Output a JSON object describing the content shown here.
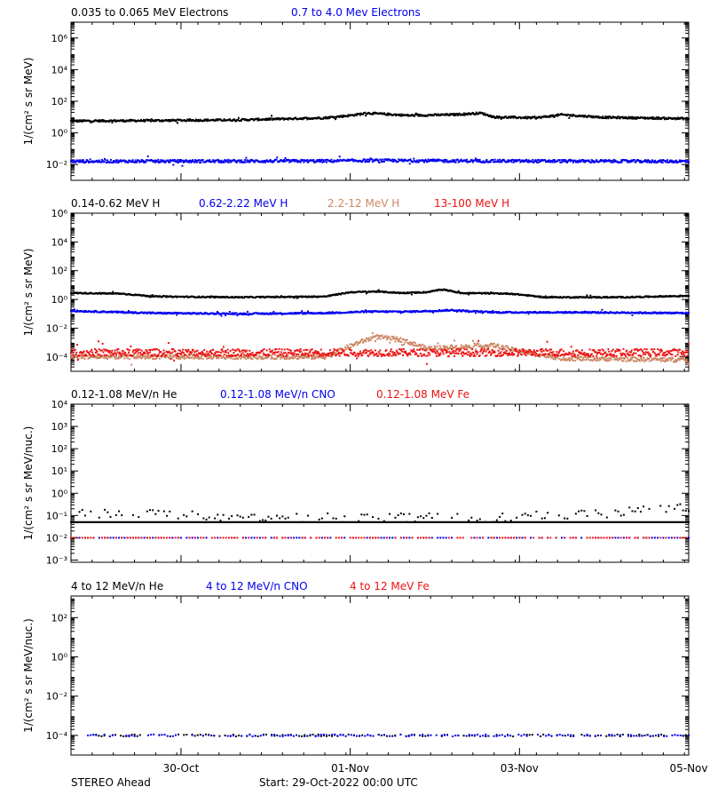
{
  "colors": {
    "black": "#000000",
    "blue": "#0000ee",
    "tan": "#cc8866",
    "red": "#ee1111"
  },
  "footer": {
    "left": "STEREO Ahead",
    "center": "Start: 29-Oct-2022 00:00 UTC"
  },
  "x_axis": {
    "unit": "days since start",
    "range": [
      0,
      7.3
    ],
    "ticks": [
      {
        "x": 1.3,
        "label": "30-Oct",
        "major": true
      },
      {
        "x": 3.3,
        "label": "01-Nov",
        "major": true
      },
      {
        "x": 5.3,
        "label": "03-Nov",
        "major": true
      },
      {
        "x": 7.3,
        "label": "05-Nov",
        "major": true
      }
    ]
  },
  "chart_data": [
    {
      "type": "scatter",
      "ylabel": "1/(cm² s sr MeV)",
      "ylog": true,
      "ylim_exp": [
        -3,
        7
      ],
      "yticks": [
        {
          "exp": -2,
          "label": "10⁻²"
        },
        {
          "exp": 0,
          "label": "10⁰"
        },
        {
          "exp": 2,
          "label": "10²"
        },
        {
          "exp": 4,
          "label": "10⁴"
        },
        {
          "exp": 6,
          "label": "10⁶"
        }
      ],
      "legend": [
        {
          "label": "0.035 to 0.065 MeV Electrons",
          "color": "black"
        },
        {
          "label": "0.7 to 4.0 Mev Electrons",
          "color": "blue"
        }
      ],
      "series": [
        {
          "color": "black",
          "scatter": 0.06,
          "points": [
            [
              0,
              0.75
            ],
            [
              1,
              0.78
            ],
            [
              2,
              0.82
            ],
            [
              3,
              0.95
            ],
            [
              3.3,
              1.1
            ],
            [
              3.5,
              1.25
            ],
            [
              4,
              1.1
            ],
            [
              4.5,
              1.15
            ],
            [
              4.85,
              1.25
            ],
            [
              5,
              1.0
            ],
            [
              5.5,
              0.95
            ],
            [
              5.8,
              1.15
            ],
            [
              6.3,
              0.98
            ],
            [
              7.3,
              0.9
            ]
          ]
        },
        {
          "color": "blue",
          "scatter": 0.09,
          "points": [
            [
              0,
              -1.8
            ],
            [
              3,
              -1.78
            ],
            [
              3.5,
              -1.75
            ],
            [
              5,
              -1.78
            ],
            [
              7.3,
              -1.8
            ]
          ]
        }
      ]
    },
    {
      "type": "scatter",
      "ylabel": "1/(cm² s sr MeV)",
      "ylog": true,
      "ylim_exp": [
        -5,
        6
      ],
      "yticks": [
        {
          "exp": -4,
          "label": "10⁻⁴"
        },
        {
          "exp": -2,
          "label": "10⁻²"
        },
        {
          "exp": 0,
          "label": "10⁰"
        },
        {
          "exp": 2,
          "label": "10²"
        },
        {
          "exp": 4,
          "label": "10⁴"
        },
        {
          "exp": 6,
          "label": "10⁶"
        }
      ],
      "legend": [
        {
          "label": "0.14-0.62 MeV H",
          "color": "black"
        },
        {
          "label": "0.62-2.22 MeV H",
          "color": "blue"
        },
        {
          "label": "2.2-12 MeV H",
          "color": "tan"
        },
        {
          "label": "13-100 MeV H",
          "color": "red"
        }
      ],
      "series": [
        {
          "color": "black",
          "scatter": 0.04,
          "points": [
            [
              0,
              0.45
            ],
            [
              0.6,
              0.4
            ],
            [
              1,
              0.2
            ],
            [
              2,
              0.15
            ],
            [
              3,
              0.2
            ],
            [
              3.3,
              0.5
            ],
            [
              3.6,
              0.55
            ],
            [
              3.9,
              0.45
            ],
            [
              4.2,
              0.5
            ],
            [
              4.4,
              0.7
            ],
            [
              4.6,
              0.45
            ],
            [
              5.2,
              0.4
            ],
            [
              5.6,
              0.15
            ],
            [
              6.5,
              0.15
            ],
            [
              7.3,
              0.25
            ]
          ]
        },
        {
          "color": "blue",
          "scatter": 0.05,
          "points": [
            [
              0,
              -0.8
            ],
            [
              1,
              -0.95
            ],
            [
              2,
              -1.0
            ],
            [
              3,
              -0.95
            ],
            [
              3.5,
              -0.85
            ],
            [
              4,
              -0.85
            ],
            [
              4.5,
              -0.75
            ],
            [
              5,
              -0.9
            ],
            [
              6,
              -0.9
            ],
            [
              7.3,
              -0.95
            ]
          ]
        },
        {
          "color": "tan",
          "scatter": 0.15,
          "points": [
            [
              0,
              -4.0
            ],
            [
              3.0,
              -4.0
            ],
            [
              3.4,
              -3.0
            ],
            [
              3.6,
              -2.6
            ],
            [
              3.9,
              -2.8
            ],
            [
              4.2,
              -3.4
            ],
            [
              4.6,
              -3.3
            ],
            [
              5.0,
              -3.2
            ],
            [
              5.3,
              -3.6
            ],
            [
              5.8,
              -4.1
            ],
            [
              7.3,
              -4.2
            ]
          ]
        },
        {
          "color": "red",
          "scatter": 0.25,
          "points": [
            [
              0,
              -3.7
            ],
            [
              7.3,
              -3.7
            ]
          ]
        }
      ]
    },
    {
      "type": "scatter",
      "ylabel": "1/(cm² s sr MeV/nuc.)",
      "ylog": true,
      "ylim_exp": [
        -3.1,
        4
      ],
      "yticks": [
        {
          "exp": -3,
          "label": "10⁻³"
        },
        {
          "exp": -2,
          "label": "10⁻²"
        },
        {
          "exp": -1,
          "label": "10⁻¹"
        },
        {
          "exp": 0,
          "label": "10⁰"
        },
        {
          "exp": 1,
          "label": "10¹"
        },
        {
          "exp": 2,
          "label": "10²"
        },
        {
          "exp": 3,
          "label": "10³"
        },
        {
          "exp": 4,
          "label": "10⁴"
        }
      ],
      "legend": [
        {
          "label": "0.12-1.08 MeV/n He",
          "color": "black"
        },
        {
          "label": "0.12-1.08 MeV/n CNO",
          "color": "blue"
        },
        {
          "label": "0.12-1.08 MeV Fe",
          "color": "red"
        }
      ],
      "series": [
        {
          "color": "black",
          "scatter": 0.0,
          "points": [
            [
              0,
              -1.3
            ],
            [
              7.3,
              -1.3
            ]
          ]
        },
        {
          "color": "black",
          "scatter": 0.2,
          "sparse": true,
          "points": [
            [
              0,
              -0.9
            ],
            [
              1,
              -0.9
            ],
            [
              2,
              -1.1
            ],
            [
              5,
              -1.1
            ],
            [
              6.3,
              -0.9
            ],
            [
              7.3,
              -0.6
            ]
          ]
        },
        {
          "color": "blue",
          "scatter": 0.0,
          "sparse": true,
          "points": [
            [
              0,
              -2.0
            ],
            [
              7.3,
              -2.0
            ]
          ]
        },
        {
          "color": "red",
          "scatter": 0.0,
          "sparse": true,
          "points": [
            [
              0,
              -2.0
            ],
            [
              7.3,
              -2.0
            ]
          ]
        }
      ]
    },
    {
      "type": "scatter",
      "ylabel": "1/(cm² s sr MeV/nuc.)",
      "ylog": true,
      "ylim_exp": [
        -5,
        3.1
      ],
      "yticks": [
        {
          "exp": -4,
          "label": "10⁻⁴"
        },
        {
          "exp": -2,
          "label": "10⁻²"
        },
        {
          "exp": 0,
          "label": "10⁰"
        },
        {
          "exp": 2,
          "label": "10²"
        }
      ],
      "legend": [
        {
          "label": "4 to 12 MeV/n He",
          "color": "black"
        },
        {
          "label": "4 to 12 MeV/n CNO",
          "color": "blue"
        },
        {
          "label": "4 to 12 MeV Fe",
          "color": "red"
        }
      ],
      "series": [
        {
          "color": "black",
          "scatter": 0.05,
          "sparse": true,
          "points": [
            [
              0.2,
              -4.0
            ],
            [
              7.3,
              -4.0
            ]
          ]
        },
        {
          "color": "blue",
          "scatter": 0.05,
          "sparse": true,
          "points": [
            [
              0.2,
              -4.0
            ],
            [
              7.3,
              -4.0
            ]
          ]
        }
      ]
    }
  ]
}
